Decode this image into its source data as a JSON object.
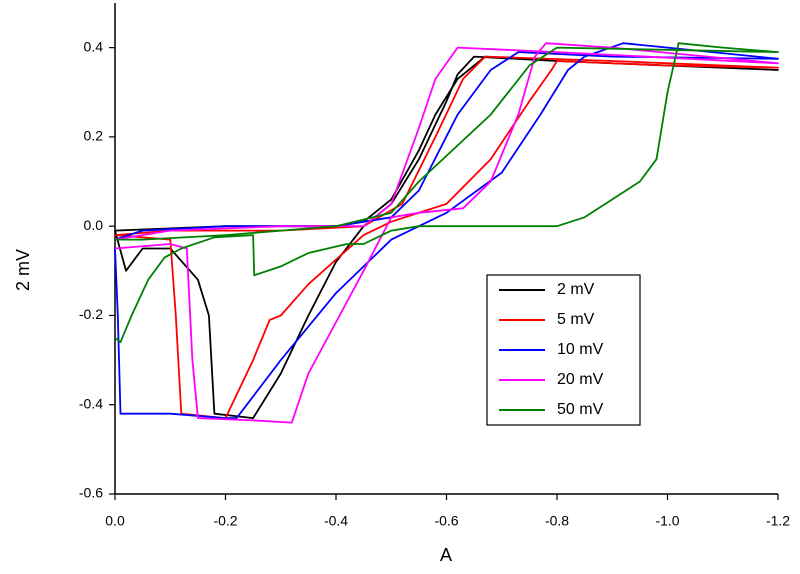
{
  "chart_data": {
    "type": "line",
    "x_label": "A",
    "y_label": "2 mV",
    "xlim": [
      0,
      -1.2
    ],
    "ylim": [
      -0.6,
      0.5
    ],
    "xticks": [
      {
        "value": 0,
        "label": "0.0"
      },
      -0.2,
      -0.4,
      -0.6,
      -0.8,
      {
        "value": -1,
        "label": "-1.0"
      },
      -1.2
    ],
    "yticks": [
      -0.6,
      -0.4,
      -0.2,
      {
        "value": 0,
        "label": "0.0"
      },
      0.2,
      0.4
    ],
    "legend": "center right",
    "series": [
      {
        "name": "2 mV",
        "color": "#000000",
        "x": [
          0,
          -0.02,
          -0.05,
          -0.1,
          -0.15,
          -0.17,
          -0.18,
          -0.25,
          -0.3,
          -0.35,
          -0.4,
          -0.45,
          -0.5,
          -0.55,
          -0.6,
          -0.62,
          -0.65,
          -0.8,
          -1.0,
          -1.2,
          -0.8,
          -0.67,
          -0.62,
          -0.58,
          -0.55,
          -0.5,
          -0.45,
          -0.4,
          -0.2,
          0
        ],
        "values": [
          -0.01,
          -0.1,
          -0.05,
          -0.05,
          -0.12,
          -0.2,
          -0.42,
          -0.43,
          -0.33,
          -0.2,
          -0.08,
          0.0,
          0.05,
          0.15,
          0.28,
          0.34,
          0.38,
          0.37,
          0.36,
          0.35,
          0.37,
          0.38,
          0.33,
          0.25,
          0.17,
          0.06,
          0.01,
          0.0,
          0.0,
          -0.01
        ]
      },
      {
        "name": "5 mV",
        "color": "#ff0000",
        "x": [
          0,
          -0.1,
          -0.11,
          -0.12,
          -0.2,
          -0.25,
          -0.28,
          -0.3,
          -0.35,
          -0.45,
          -0.5,
          -0.6,
          -0.68,
          -0.75,
          -0.79,
          -0.8,
          -1.0,
          -1.2,
          -0.9,
          -0.67,
          -0.63,
          -0.58,
          -0.52,
          -0.45,
          -0.3,
          -0.1,
          0
        ],
        "values": [
          -0.02,
          -0.03,
          -0.2,
          -0.42,
          -0.43,
          -0.3,
          -0.21,
          -0.2,
          -0.13,
          -0.02,
          0.01,
          0.05,
          0.15,
          0.28,
          0.35,
          0.37,
          0.36,
          0.355,
          0.37,
          0.38,
          0.33,
          0.2,
          0.05,
          0.0,
          -0.01,
          -0.01,
          -0.02
        ]
      },
      {
        "name": "10 mV",
        "color": "#0000ff",
        "x": [
          0,
          -0.005,
          -0.01,
          -0.1,
          -0.2,
          -0.22,
          -0.3,
          -0.4,
          -0.5,
          -0.6,
          -0.7,
          -0.77,
          -0.82,
          -0.85,
          -0.92,
          -1.0,
          -1.2,
          -0.9,
          -0.73,
          -0.68,
          -0.62,
          -0.55,
          -0.5,
          -0.4,
          -0.2,
          -0.05,
          0
        ],
        "values": [
          -0.05,
          -0.2,
          -0.42,
          -0.42,
          -0.43,
          -0.43,
          -0.3,
          -0.15,
          -0.03,
          0.03,
          0.12,
          0.25,
          0.35,
          0.38,
          0.41,
          0.4,
          0.375,
          0.38,
          0.39,
          0.35,
          0.25,
          0.08,
          0.02,
          0.0,
          0.0,
          -0.01,
          -0.03
        ]
      },
      {
        "name": "20 mV",
        "color": "#ff00ff",
        "x": [
          0,
          -0.1,
          -0.13,
          -0.14,
          -0.15,
          -0.25,
          -0.32,
          -0.35,
          -0.45,
          -0.5,
          -0.55,
          -0.63,
          -0.68,
          -0.73,
          -0.76,
          -0.78,
          -0.9,
          -1.2,
          -0.8,
          -0.62,
          -0.58,
          -0.55,
          -0.5,
          -0.45,
          -0.3,
          -0.1,
          0
        ],
        "values": [
          -0.05,
          -0.04,
          -0.05,
          -0.3,
          -0.43,
          -0.435,
          -0.44,
          -0.33,
          -0.1,
          0.02,
          0.03,
          0.04,
          0.1,
          0.25,
          0.38,
          0.41,
          0.4,
          0.365,
          0.39,
          0.4,
          0.33,
          0.22,
          0.05,
          0.0,
          0.0,
          -0.01,
          -0.03
        ]
      },
      {
        "name": "50 mV",
        "color": "#008000",
        "x": [
          0,
          -0.01,
          -0.03,
          -0.06,
          -0.09,
          -0.12,
          -0.18,
          -0.25,
          -0.252,
          -0.3,
          -0.35,
          -0.42,
          -0.45,
          -0.5,
          -0.55,
          -0.6,
          -0.8,
          -0.85,
          -0.9,
          -0.95,
          -0.98,
          -1.0,
          -1.02,
          -1.1,
          -1.2,
          -0.8,
          -0.75,
          -0.68,
          -0.55,
          -0.5,
          -0.4,
          -0.2,
          -0.05,
          0
        ],
        "values": [
          -0.25,
          -0.26,
          -0.2,
          -0.12,
          -0.07,
          -0.05,
          -0.025,
          -0.02,
          -0.11,
          -0.09,
          -0.06,
          -0.04,
          -0.04,
          -0.01,
          0.0,
          0.0,
          0.0,
          0.02,
          0.06,
          0.1,
          0.15,
          0.3,
          0.41,
          0.4,
          0.39,
          0.4,
          0.36,
          0.25,
          0.1,
          0.03,
          0.0,
          -0.02,
          -0.03,
          -0.03
        ]
      }
    ]
  }
}
